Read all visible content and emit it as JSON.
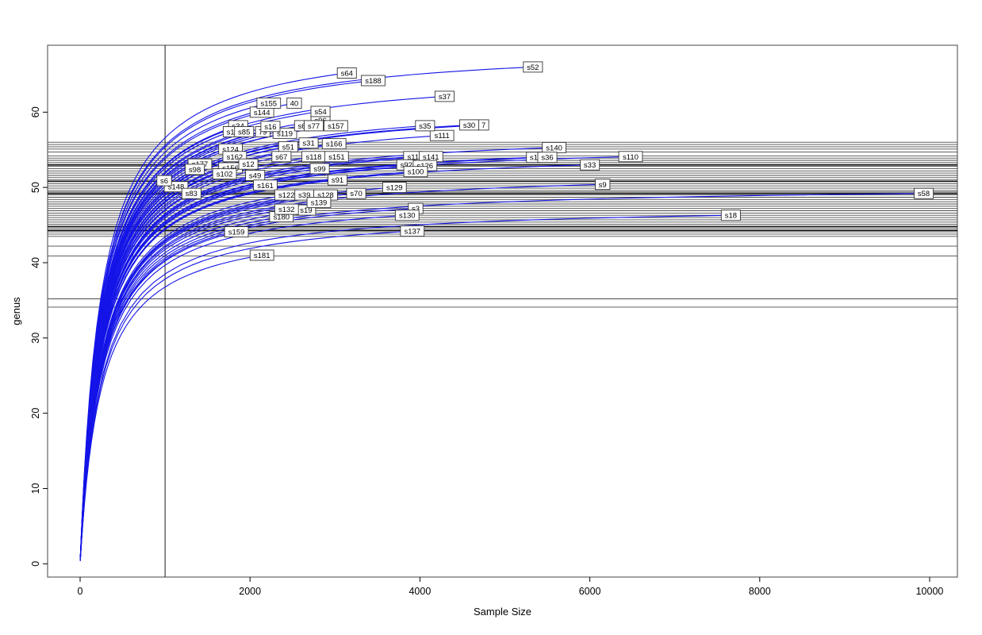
{
  "chart_data": {
    "type": "line",
    "subtype": "rarefaction-curves",
    "title": "",
    "xlabel": "Sample Size",
    "ylabel": "genus",
    "x_ticks": [
      0,
      2000,
      4000,
      6000,
      8000,
      10000
    ],
    "y_ticks": [
      0,
      10,
      20,
      30,
      40,
      50,
      60
    ],
    "xlim": [
      0,
      10330
    ],
    "ylim": [
      -2,
      69
    ],
    "grid": false,
    "legend": false,
    "vline_x": 1000,
    "colors": {
      "curve": "#1414E8",
      "hline": "#4a4a4a",
      "hline_dark": "#1f1f1f",
      "box": "#6f6f6f",
      "axis": "#000000",
      "label_box_fill": "#ffffff",
      "label_box_border": "#333333"
    },
    "hlines_genus": [
      56.0,
      55.7,
      55.4,
      55.1,
      54.7,
      54.2,
      53.9,
      53.6,
      53.3,
      52.8,
      52.5,
      52.2,
      51.9,
      51.6,
      51.3,
      51.0,
      50.5,
      50.2,
      49.9,
      49.6,
      49.4,
      49.0,
      48.7,
      48.4,
      48.1,
      47.8,
      47.5,
      47.2,
      46.9,
      46.6,
      46.3,
      46.0,
      45.7,
      45.4,
      45.1,
      44.6,
      44.1,
      43.8,
      43.5,
      42.2,
      40.9,
      35.2,
      34.1
    ],
    "hlines_dark_genus": [
      53.0,
      50.8,
      49.2,
      44.8,
      44.3
    ],
    "series": [
      {
        "label": "s64",
        "x": 3140,
        "y": 65.2
      },
      {
        "label": "s188",
        "x": 3450,
        "y": 64.2
      },
      {
        "label": "s52",
        "x": 5330,
        "y": 66.0
      },
      {
        "label": "s37",
        "x": 4290,
        "y": 62.1
      },
      {
        "label": "s144",
        "x": 2140,
        "y": 60.0
      },
      {
        "label": "40",
        "x": 2520,
        "y": 61.2
      },
      {
        "label": "s155",
        "x": 2220,
        "y": 61.2
      },
      {
        "label": "s96",
        "x": 2830,
        "y": 58.9
      },
      {
        "label": "s54",
        "x": 2830,
        "y": 60.1
      },
      {
        "label": "s34",
        "x": 1860,
        "y": 58.2
      },
      {
        "label": "s1",
        "x": 1770,
        "y": 57.4
      },
      {
        "label": "79",
        "x": 2150,
        "y": 57.4
      },
      {
        "label": "s85",
        "x": 1930,
        "y": 57.4
      },
      {
        "label": "s119",
        "x": 2410,
        "y": 57.2
      },
      {
        "label": "s16",
        "x": 2240,
        "y": 58.1
      },
      {
        "label": "s6",
        "x": 2610,
        "y": 58.2
      },
      {
        "label": "s77",
        "x": 2750,
        "y": 58.2
      },
      {
        "label": "s157",
        "x": 3010,
        "y": 58.2
      },
      {
        "label": "s111",
        "x": 4260,
        "y": 56.9
      },
      {
        "label": "s35",
        "x": 4060,
        "y": 58.2
      },
      {
        "label": "7",
        "x": 4750,
        "y": 58.3
      },
      {
        "label": "s30",
        "x": 4580,
        "y": 58.3
      },
      {
        "label": "s31",
        "x": 2690,
        "y": 55.9
      },
      {
        "label": "s166",
        "x": 2990,
        "y": 55.8
      },
      {
        "label": "s124",
        "x": 1770,
        "y": 55.1
      },
      {
        "label": "s51",
        "x": 2450,
        "y": 55.4
      },
      {
        "label": "s140",
        "x": 5580,
        "y": 55.3
      },
      {
        "label": "s162",
        "x": 1820,
        "y": 54.1
      },
      {
        "label": "s67",
        "x": 2370,
        "y": 54.1
      },
      {
        "label": "s118",
        "x": 2750,
        "y": 54.1
      },
      {
        "label": "s151",
        "x": 3020,
        "y": 54.1
      },
      {
        "label": "s11",
        "x": 3920,
        "y": 54.1
      },
      {
        "label": "s141",
        "x": 4130,
        "y": 54.1
      },
      {
        "label": "s1",
        "x": 5340,
        "y": 54.0
      },
      {
        "label": "s36",
        "x": 5500,
        "y": 54.0
      },
      {
        "label": "s110",
        "x": 6480,
        "y": 54.1
      },
      {
        "label": "s33",
        "x": 6000,
        "y": 53.0
      },
      {
        "label": "s177",
        "x": 1410,
        "y": 53.1
      },
      {
        "label": "s98",
        "x": 1350,
        "y": 52.4
      },
      {
        "label": "s92",
        "x": 3840,
        "y": 53.0
      },
      {
        "label": "s126",
        "x": 4060,
        "y": 52.9
      },
      {
        "label": "s100",
        "x": 3950,
        "y": 52.1
      },
      {
        "label": "s156",
        "x": 1770,
        "y": 52.6
      },
      {
        "label": "s12",
        "x": 1980,
        "y": 53.1
      },
      {
        "label": "s49",
        "x": 2060,
        "y": 51.6
      },
      {
        "label": "s102",
        "x": 1700,
        "y": 51.8
      },
      {
        "label": "s99",
        "x": 2820,
        "y": 52.5
      },
      {
        "label": "s91",
        "x": 3030,
        "y": 51.0
      },
      {
        "label": "s148",
        "x": 1130,
        "y": 50.1
      },
      {
        "label": "s6",
        "x": 990,
        "y": 50.9
      },
      {
        "label": "s161",
        "x": 2180,
        "y": 50.3
      },
      {
        "label": "s129",
        "x": 3700,
        "y": 50.0
      },
      {
        "label": "s9",
        "x": 6150,
        "y": 50.4
      },
      {
        "label": "s83",
        "x": 1310,
        "y": 49.2
      },
      {
        "label": "s122",
        "x": 2430,
        "y": 49.0
      },
      {
        "label": "s39",
        "x": 2640,
        "y": 49.0
      },
      {
        "label": "s128",
        "x": 2890,
        "y": 49.0
      },
      {
        "label": "s70",
        "x": 3250,
        "y": 49.2
      },
      {
        "label": "s58",
        "x": 9930,
        "y": 49.2
      },
      {
        "label": "s180",
        "x": 2370,
        "y": 46.1
      },
      {
        "label": "s19",
        "x": 2660,
        "y": 47.0
      },
      {
        "label": "s132",
        "x": 2430,
        "y": 47.1
      },
      {
        "label": "s139",
        "x": 2810,
        "y": 48.0
      },
      {
        "label": "s3",
        "x": 3950,
        "y": 47.2
      },
      {
        "label": "s130",
        "x": 3850,
        "y": 46.3
      },
      {
        "label": "s18",
        "x": 7660,
        "y": 46.3
      },
      {
        "label": "s159",
        "x": 1840,
        "y": 44.1
      },
      {
        "label": "s137",
        "x": 3910,
        "y": 44.2
      },
      {
        "label": "s181",
        "x": 2140,
        "y": 41.0
      }
    ]
  }
}
